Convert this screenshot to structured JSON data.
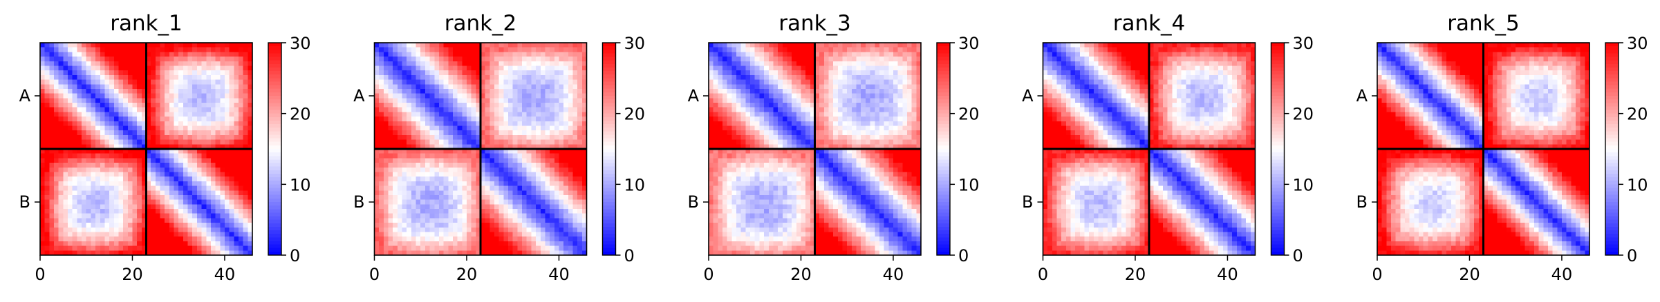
{
  "chart_data": {
    "type": "heatmap",
    "colormap": "bwr",
    "vmin": 0,
    "vmax": 30,
    "matrix_size": 46,
    "chain_break": 23,
    "colorbar_ticks": [
      "0",
      "10",
      "20",
      "30"
    ],
    "x_ticks": [
      "0",
      "20",
      "40"
    ],
    "y_ticks": [
      "A",
      "B"
    ],
    "colors": {
      "low": "#0000ff",
      "mid": "#ffffff",
      "high": "#ff0000",
      "divider": "#000000"
    },
    "panels": [
      {
        "title": "rank_1",
        "inter_chain_min": 11,
        "inter_chain_max": 30,
        "intra_max": 30,
        "spread": 12
      },
      {
        "title": "rank_2",
        "inter_chain_min": 10,
        "inter_chain_max": 24,
        "intra_max": 30,
        "spread": 15
      },
      {
        "title": "rank_3",
        "inter_chain_min": 10,
        "inter_chain_max": 23,
        "intra_max": 30,
        "spread": 15
      },
      {
        "title": "rank_4",
        "inter_chain_min": 11,
        "inter_chain_max": 28,
        "intra_max": 30,
        "spread": 14
      },
      {
        "title": "rank_5",
        "inter_chain_min": 12,
        "inter_chain_max": 30,
        "intra_max": 30,
        "spread": 12
      }
    ]
  }
}
